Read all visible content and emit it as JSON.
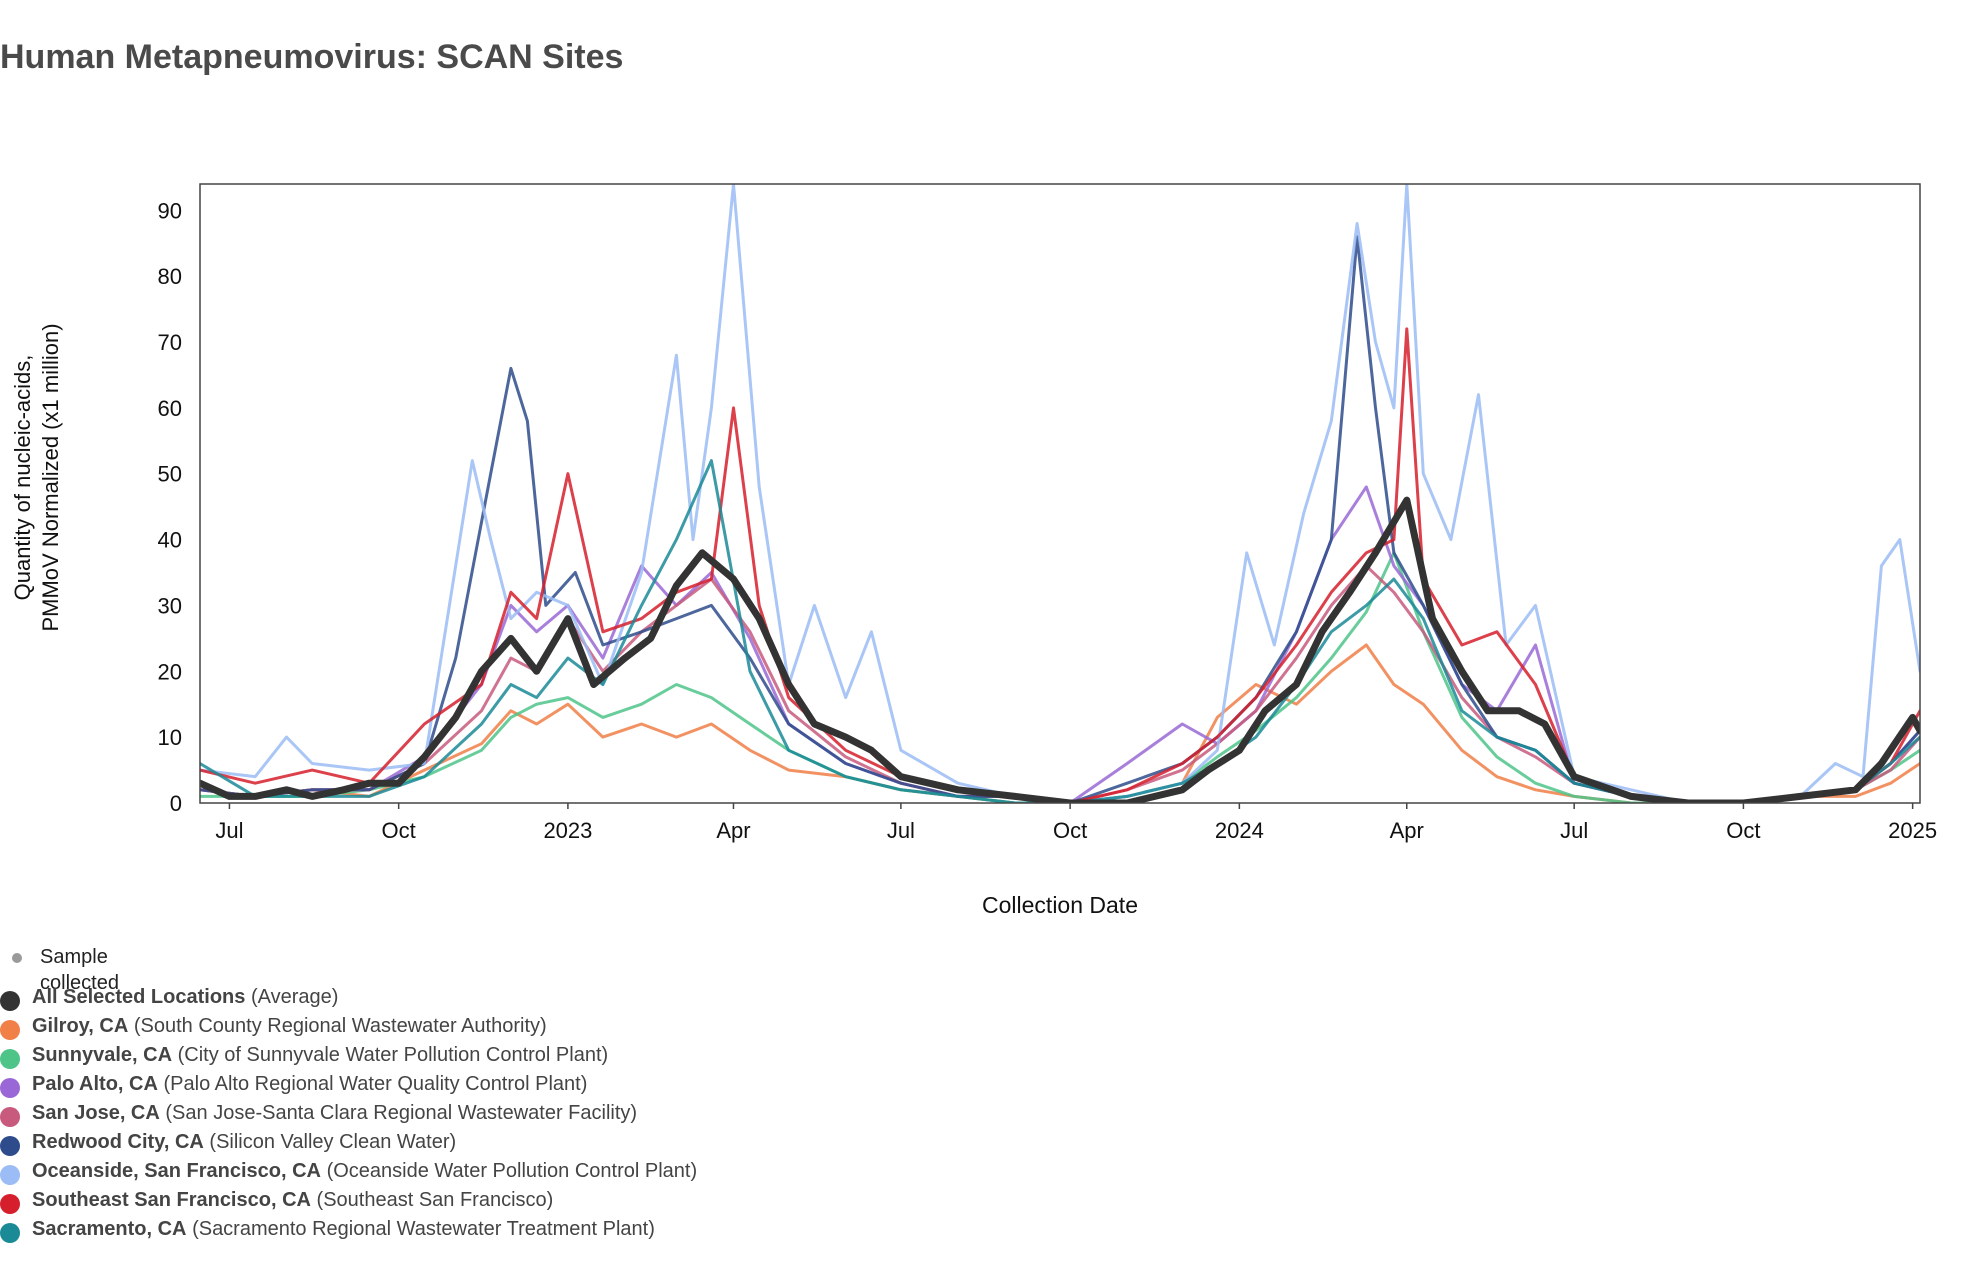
{
  "page": {
    "title": "Human Metapneumovirus: SCAN Sites"
  },
  "legend": {
    "sample_label": "Sample collected",
    "items": [
      {
        "name": "All Selected Locations",
        "detail": "(Average)",
        "color": "#333333"
      },
      {
        "name": "Gilroy, CA",
        "detail": "(South County Regional Wastewater Authority)",
        "color": "#f07f48"
      },
      {
        "name": "Sunnyvale, CA",
        "detail": "(City of Sunnyvale Water Pollution Control Plant)",
        "color": "#4ec489"
      },
      {
        "name": "Palo Alto, CA",
        "detail": "(Palo Alto Regional Water Quality Control Plant)",
        "color": "#9a68d6"
      },
      {
        "name": "San Jose, CA",
        "detail": "(San Jose-Santa Clara Regional Wastewater Facility)",
        "color": "#c75a7d"
      },
      {
        "name": "Redwood City, CA",
        "detail": "(Silicon Valley Clean Water)",
        "color": "#2e4c8c"
      },
      {
        "name": "Oceanside, San Francisco, CA",
        "detail": "(Oceanside Water Pollution Control Plant)",
        "color": "#9bbcf4"
      },
      {
        "name": "Southeast San Francisco, CA",
        "detail": "(Southeast San Francisco)",
        "color": "#d61f2c"
      },
      {
        "name": "Sacramento, CA",
        "detail": "(Sacramento Regional Wastewater Treatment Plant)",
        "color": "#1a8a96"
      }
    ]
  },
  "chart_data": {
    "type": "line",
    "title": "Human Metapneumovirus: SCAN Sites",
    "xlabel": "Collection Date",
    "ylabel": [
      "Quantity of nucleic-acids,",
      "PMMoV Normalized (x1 million)"
    ],
    "xlim": [
      "2022-06-15",
      "2025-01-05"
    ],
    "ylim": [
      0,
      94
    ],
    "yticks": [
      0,
      10,
      20,
      30,
      40,
      50,
      60,
      70,
      80,
      90
    ],
    "xticks": [
      {
        "date": "2022-07-01",
        "label": "Jul"
      },
      {
        "date": "2022-10-01",
        "label": "Oct"
      },
      {
        "date": "2023-01-01",
        "label": "2023"
      },
      {
        "date": "2023-04-01",
        "label": "Apr"
      },
      {
        "date": "2023-07-01",
        "label": "Jul"
      },
      {
        "date": "2023-10-01",
        "label": "Oct"
      },
      {
        "date": "2024-01-01",
        "label": "2024"
      },
      {
        "date": "2024-04-01",
        "label": "Apr"
      },
      {
        "date": "2024-07-01",
        "label": "Jul"
      },
      {
        "date": "2024-10-01",
        "label": "Oct"
      },
      {
        "date": "2025-01-01",
        "label": "2025"
      }
    ],
    "grid": false,
    "legend_position": "bottom-left",
    "series": [
      {
        "name": "Gilroy, CA",
        "color": "#f07f48",
        "width": 3,
        "x": [
          "2022-06-15",
          "2022-07-15",
          "2022-08-15",
          "2022-09-15",
          "2022-10-15",
          "2022-11-15",
          "2022-12-01",
          "2022-12-15",
          "2023-01-01",
          "2023-01-20",
          "2023-02-10",
          "2023-03-01",
          "2023-03-20",
          "2023-04-10",
          "2023-05-01",
          "2023-06-01",
          "2023-07-01",
          "2023-08-01",
          "2023-09-01",
          "2023-10-01",
          "2023-11-01",
          "2023-12-01",
          "2023-12-20",
          "2024-01-10",
          "2024-02-01",
          "2024-02-20",
          "2024-03-10",
          "2024-03-25",
          "2024-04-10",
          "2024-05-01",
          "2024-05-20",
          "2024-06-10",
          "2024-07-01",
          "2024-08-01",
          "2024-09-01",
          "2024-10-01",
          "2024-11-01",
          "2024-12-01",
          "2024-12-20",
          "2025-01-05"
        ],
        "y": [
          2,
          1,
          2,
          1,
          5,
          9,
          14,
          12,
          15,
          10,
          12,
          10,
          12,
          8,
          5,
          4,
          2,
          1,
          0,
          0,
          1,
          3,
          13,
          18,
          15,
          20,
          24,
          18,
          15,
          8,
          4,
          2,
          1,
          0,
          0,
          0,
          1,
          1,
          3,
          6
        ]
      },
      {
        "name": "Sunnyvale, CA",
        "color": "#4ec489",
        "width": 3,
        "x": [
          "2022-06-15",
          "2022-07-15",
          "2022-08-15",
          "2022-09-15",
          "2022-10-15",
          "2022-11-15",
          "2022-12-01",
          "2022-12-15",
          "2023-01-01",
          "2023-01-20",
          "2023-02-10",
          "2023-03-01",
          "2023-03-20",
          "2023-04-10",
          "2023-05-01",
          "2023-06-01",
          "2023-07-01",
          "2023-08-01",
          "2023-09-01",
          "2023-10-01",
          "2023-11-01",
          "2023-12-01",
          "2023-12-20",
          "2024-01-10",
          "2024-02-01",
          "2024-02-20",
          "2024-03-10",
          "2024-03-25",
          "2024-04-10",
          "2024-05-01",
          "2024-05-20",
          "2024-06-10",
          "2024-07-01",
          "2024-08-01",
          "2024-09-01",
          "2024-10-01",
          "2024-11-01",
          "2024-12-01",
          "2024-12-20",
          "2025-01-05"
        ],
        "y": [
          1,
          1,
          1,
          2,
          4,
          8,
          13,
          15,
          16,
          13,
          15,
          18,
          16,
          12,
          8,
          4,
          2,
          1,
          0,
          0,
          1,
          3,
          7,
          11,
          16,
          22,
          29,
          38,
          26,
          13,
          7,
          3,
          1,
          0,
          0,
          0,
          1,
          2,
          5,
          8
        ]
      },
      {
        "name": "Palo Alto, CA",
        "color": "#9a68d6",
        "width": 3,
        "x": [
          "2022-06-15",
          "2022-07-15",
          "2022-08-15",
          "2022-09-15",
          "2022-10-15",
          "2022-11-15",
          "2022-12-01",
          "2022-12-15",
          "2023-01-01",
          "2023-01-20",
          "2023-02-10",
          "2023-03-01",
          "2023-03-20",
          "2023-04-10",
          "2023-05-01",
          "2023-06-01",
          "2023-07-01",
          "2023-08-01",
          "2023-09-01",
          "2023-10-01",
          "2023-11-01",
          "2023-12-01",
          "2023-12-20",
          "2024-01-10",
          "2024-02-01",
          "2024-02-20",
          "2024-03-10",
          "2024-03-25",
          "2024-04-10",
          "2024-05-01",
          "2024-05-20",
          "2024-06-10",
          "2024-07-01",
          "2024-08-01",
          "2024-09-01",
          "2024-10-01",
          "2024-11-01",
          "2024-12-01",
          "2024-12-20",
          "2025-01-05"
        ],
        "y": [
          2,
          1,
          2,
          2,
          7,
          18,
          30,
          26,
          30,
          22,
          36,
          30,
          35,
          25,
          12,
          6,
          3,
          1,
          1,
          0,
          6,
          12,
          9,
          14,
          26,
          40,
          48,
          36,
          30,
          18,
          14,
          24,
          3,
          1,
          0,
          0,
          1,
          2,
          6,
          11
        ]
      },
      {
        "name": "San Jose, CA",
        "color": "#c75a7d",
        "width": 3,
        "x": [
          "2022-06-15",
          "2022-07-15",
          "2022-08-15",
          "2022-09-15",
          "2022-10-15",
          "2022-11-15",
          "2022-12-01",
          "2022-12-15",
          "2023-01-01",
          "2023-01-20",
          "2023-02-10",
          "2023-03-01",
          "2023-03-20",
          "2023-04-10",
          "2023-05-01",
          "2023-06-01",
          "2023-07-01",
          "2023-08-01",
          "2023-09-01",
          "2023-10-01",
          "2023-11-01",
          "2023-12-01",
          "2023-12-20",
          "2024-01-10",
          "2024-02-01",
          "2024-02-20",
          "2024-03-10",
          "2024-03-25",
          "2024-04-10",
          "2024-05-01",
          "2024-05-20",
          "2024-06-10",
          "2024-07-01",
          "2024-08-01",
          "2024-09-01",
          "2024-10-01",
          "2024-11-01",
          "2024-12-01",
          "2024-12-20",
          "2025-01-05"
        ],
        "y": [
          2,
          1,
          2,
          2,
          6,
          14,
          22,
          20,
          28,
          20,
          26,
          30,
          34,
          26,
          14,
          7,
          3,
          1,
          1,
          0,
          2,
          5,
          9,
          14,
          22,
          30,
          36,
          32,
          26,
          16,
          10,
          7,
          3,
          1,
          0,
          0,
          1,
          2,
          5,
          10
        ]
      },
      {
        "name": "Redwood City, CA",
        "color": "#2e4c8c",
        "width": 3,
        "x": [
          "2022-06-15",
          "2022-07-15",
          "2022-08-15",
          "2022-09-15",
          "2022-10-15",
          "2022-11-01",
          "2022-11-20",
          "2022-12-01",
          "2022-12-10",
          "2022-12-20",
          "2023-01-05",
          "2023-01-20",
          "2023-02-10",
          "2023-03-01",
          "2023-03-20",
          "2023-04-10",
          "2023-05-01",
          "2023-06-01",
          "2023-07-01",
          "2023-08-01",
          "2023-09-01",
          "2023-10-01",
          "2023-11-01",
          "2023-12-01",
          "2023-12-20",
          "2024-01-10",
          "2024-02-01",
          "2024-02-20",
          "2024-03-05",
          "2024-03-15",
          "2024-03-25",
          "2024-04-10",
          "2024-05-01",
          "2024-05-20",
          "2024-06-10",
          "2024-07-01",
          "2024-08-01",
          "2024-09-01",
          "2024-10-01",
          "2024-11-01",
          "2024-12-01",
          "2024-12-20",
          "2025-01-05"
        ],
        "y": [
          2,
          1,
          2,
          2,
          6,
          22,
          50,
          66,
          58,
          30,
          35,
          24,
          26,
          28,
          30,
          22,
          12,
          6,
          3,
          1,
          1,
          0,
          3,
          6,
          10,
          16,
          26,
          40,
          86,
          60,
          38,
          30,
          18,
          10,
          8,
          3,
          1,
          0,
          0,
          1,
          2,
          6,
          11
        ]
      },
      {
        "name": "Oceanside, San Francisco, CA",
        "color": "#9bbcf4",
        "width": 3,
        "x": [
          "2022-06-15",
          "2022-07-15",
          "2022-08-01",
          "2022-08-15",
          "2022-09-15",
          "2022-10-15",
          "2022-11-10",
          "2022-11-20",
          "2022-12-01",
          "2022-12-15",
          "2023-01-01",
          "2023-01-20",
          "2023-02-10",
          "2023-03-01",
          "2023-03-10",
          "2023-03-20",
          "2023-04-01",
          "2023-04-15",
          "2023-05-01",
          "2023-05-15",
          "2023-06-01",
          "2023-06-15",
          "2023-07-01",
          "2023-08-01",
          "2023-09-01",
          "2023-10-01",
          "2023-11-01",
          "2023-12-01",
          "2023-12-20",
          "2024-01-05",
          "2024-01-20",
          "2024-02-05",
          "2024-02-20",
          "2024-03-05",
          "2024-03-15",
          "2024-03-25",
          "2024-04-01",
          "2024-04-10",
          "2024-04-25",
          "2024-05-10",
          "2024-05-25",
          "2024-06-10",
          "2024-07-01",
          "2024-08-01",
          "2024-09-01",
          "2024-10-01",
          "2024-11-01",
          "2024-11-20",
          "2024-12-05",
          "2024-12-15",
          "2024-12-25",
          "2025-01-05"
        ],
        "y": [
          5,
          4,
          10,
          6,
          5,
          6,
          52,
          40,
          28,
          32,
          30,
          18,
          35,
          68,
          40,
          60,
          94,
          48,
          18,
          30,
          16,
          26,
          8,
          3,
          1,
          0,
          1,
          3,
          8,
          38,
          24,
          44,
          58,
          88,
          70,
          60,
          94,
          50,
          40,
          62,
          24,
          30,
          4,
          2,
          0,
          0,
          1,
          6,
          4,
          36,
          40,
          20
        ]
      },
      {
        "name": "Southeast San Francisco, CA",
        "color": "#d61f2c",
        "width": 3,
        "x": [
          "2022-06-15",
          "2022-07-15",
          "2022-08-15",
          "2022-09-15",
          "2022-10-15",
          "2022-11-15",
          "2022-12-01",
          "2022-12-15",
          "2023-01-01",
          "2023-01-20",
          "2023-02-10",
          "2023-03-01",
          "2023-03-20",
          "2023-04-01",
          "2023-04-15",
          "2023-05-01",
          "2023-06-01",
          "2023-07-01",
          "2023-08-01",
          "2023-09-01",
          "2023-10-01",
          "2023-11-01",
          "2023-12-01",
          "2023-12-20",
          "2024-01-10",
          "2024-02-01",
          "2024-02-20",
          "2024-03-10",
          "2024-03-25",
          "2024-04-01",
          "2024-04-10",
          "2024-05-01",
          "2024-05-20",
          "2024-06-10",
          "2024-07-01",
          "2024-08-01",
          "2024-09-01",
          "2024-10-01",
          "2024-11-01",
          "2024-12-01",
          "2024-12-20",
          "2025-01-05"
        ],
        "y": [
          5,
          3,
          5,
          3,
          12,
          18,
          32,
          28,
          50,
          26,
          28,
          32,
          34,
          60,
          30,
          16,
          8,
          4,
          2,
          1,
          0,
          2,
          6,
          10,
          16,
          24,
          32,
          38,
          40,
          72,
          34,
          24,
          26,
          18,
          4,
          1,
          0,
          0,
          1,
          2,
          6,
          14
        ]
      },
      {
        "name": "Sacramento, CA",
        "color": "#1a8a96",
        "width": 3,
        "x": [
          "2022-06-15",
          "2022-07-15",
          "2022-08-15",
          "2022-09-15",
          "2022-10-15",
          "2022-11-15",
          "2022-12-01",
          "2022-12-15",
          "2023-01-01",
          "2023-01-20",
          "2023-02-10",
          "2023-03-01",
          "2023-03-20",
          "2023-04-10",
          "2023-05-01",
          "2023-06-01",
          "2023-07-01",
          "2023-08-01",
          "2023-09-01",
          "2023-10-01",
          "2023-11-01",
          "2023-12-01",
          "2023-12-20",
          "2024-01-10",
          "2024-02-01",
          "2024-02-20",
          "2024-03-10",
          "2024-03-25",
          "2024-04-10",
          "2024-05-01",
          "2024-05-20",
          "2024-06-10",
          "2024-07-01",
          "2024-08-01",
          "2024-09-01",
          "2024-10-01",
          "2024-11-01",
          "2024-12-01",
          "2024-12-20",
          "2025-01-05"
        ],
        "y": [
          6,
          1,
          1,
          1,
          4,
          12,
          18,
          16,
          22,
          18,
          30,
          40,
          52,
          20,
          8,
          4,
          2,
          1,
          0,
          0,
          1,
          3,
          6,
          10,
          18,
          26,
          30,
          34,
          28,
          14,
          10,
          8,
          3,
          1,
          0,
          0,
          1,
          2,
          6,
          10
        ]
      },
      {
        "name": "All Selected Locations",
        "color": "#333333",
        "width": 7,
        "x": [
          "2022-06-15",
          "2022-07-01",
          "2022-07-15",
          "2022-08-01",
          "2022-08-15",
          "2022-09-01",
          "2022-09-15",
          "2022-10-01",
          "2022-10-15",
          "2022-11-01",
          "2022-11-15",
          "2022-12-01",
          "2022-12-15",
          "2023-01-01",
          "2023-01-15",
          "2023-02-01",
          "2023-02-15",
          "2023-03-01",
          "2023-03-15",
          "2023-04-01",
          "2023-04-15",
          "2023-05-01",
          "2023-05-15",
          "2023-06-01",
          "2023-06-15",
          "2023-07-01",
          "2023-08-01",
          "2023-09-01",
          "2023-10-01",
          "2023-11-01",
          "2023-12-01",
          "2023-12-15",
          "2024-01-01",
          "2024-01-15",
          "2024-02-01",
          "2024-02-15",
          "2024-03-01",
          "2024-03-15",
          "2024-04-01",
          "2024-04-15",
          "2024-05-01",
          "2024-05-15",
          "2024-06-01",
          "2024-06-15",
          "2024-07-01",
          "2024-08-01",
          "2024-09-01",
          "2024-10-01",
          "2024-11-01",
          "2024-12-01",
          "2024-12-15",
          "2025-01-01",
          "2025-01-05"
        ],
        "y": [
          3,
          1,
          1,
          2,
          1,
          2,
          3,
          3,
          7,
          13,
          20,
          25,
          20,
          28,
          18,
          22,
          25,
          33,
          38,
          34,
          28,
          18,
          12,
          10,
          8,
          4,
          2,
          1,
          0,
          0,
          2,
          5,
          8,
          14,
          18,
          26,
          32,
          38,
          46,
          28,
          20,
          14,
          14,
          12,
          4,
          1,
          0,
          0,
          1,
          2,
          6,
          13,
          11
        ]
      }
    ]
  }
}
